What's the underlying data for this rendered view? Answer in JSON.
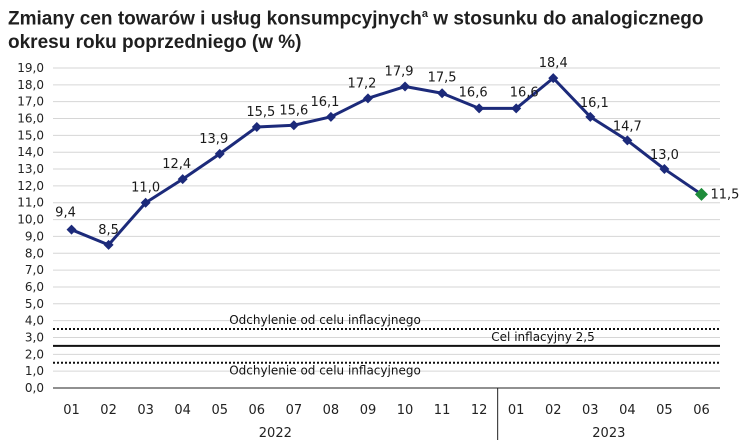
{
  "title": {
    "line1_main": "Zmiany cen towarów i usług konsumpcyjnych",
    "line1_sup": "a",
    "line1_end": " w stosunku do analogicznego",
    "line2": "okresu roku poprzedniego (w %)"
  },
  "chart_data": {
    "type": "line",
    "title": "Zmiany cen towarów i usług konsumpcyjnych w stosunku do analogicznego okresu roku poprzedniego (w %)",
    "categories": [
      "01",
      "02",
      "03",
      "04",
      "05",
      "06",
      "07",
      "08",
      "09",
      "10",
      "11",
      "12",
      "01",
      "02",
      "03",
      "04",
      "05",
      "06"
    ],
    "year_groups": [
      {
        "label": "2022",
        "start": 0,
        "end": 11
      },
      {
        "label": "2023",
        "start": 12,
        "end": 17
      }
    ],
    "series": [
      {
        "values": [
          9.4,
          8.5,
          11.0,
          12.4,
          13.9,
          15.5,
          15.6,
          16.1,
          17.2,
          17.9,
          17.5,
          16.6,
          16.6,
          18.4,
          16.1,
          14.7,
          13.0,
          11.5
        ],
        "labels": [
          "9,4",
          "8,5",
          "11,0",
          "12,4",
          "13,9",
          "15,5",
          "15,6",
          "16,1",
          "17,2",
          "17,9",
          "17,5",
          "16,6",
          "16,6",
          "18,4",
          "16,1",
          "14,7",
          "13,0",
          "11,5"
        ],
        "color": "#1c2a7a",
        "last_point_color": "#1e8c3a"
      }
    ],
    "ylim": [
      0,
      19
    ],
    "ytick_step": 1,
    "ytick_labels": [
      "0,0",
      "1,0",
      "2,0",
      "3,0",
      "4,0",
      "5,0",
      "6,0",
      "7,0",
      "8,0",
      "9,0",
      "10,0",
      "11,0",
      "12,0",
      "13,0",
      "14,0",
      "15,0",
      "16,0",
      "17,0",
      "18,0",
      "19,0"
    ],
    "grid": true,
    "reference_lines": [
      {
        "value": 3.5,
        "style": "dotted",
        "label": "Odchylenie od celu inflacyjnego"
      },
      {
        "value": 2.5,
        "style": "solid",
        "label": "Cel inflacyjny 2,5"
      },
      {
        "value": 1.5,
        "style": "dotted",
        "label": "Odchylenie od celu inflacyjnego"
      }
    ]
  }
}
